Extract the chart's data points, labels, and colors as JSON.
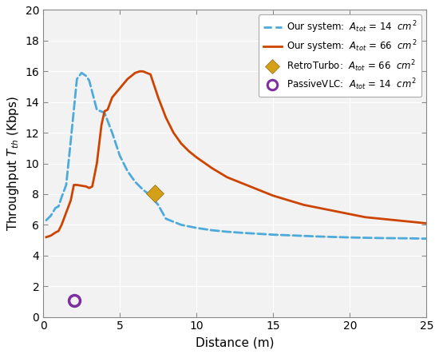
{
  "title": "",
  "xlabel": "Distance (m)",
  "ylabel": "Throughput $T_{th}$ (Kbps)",
  "xlim": [
    0,
    25
  ],
  "ylim": [
    0,
    20
  ],
  "xticks": [
    0,
    5,
    10,
    15,
    20,
    25
  ],
  "yticks": [
    0,
    2,
    4,
    6,
    8,
    10,
    12,
    14,
    16,
    18,
    20
  ],
  "bg_color": "#ffffff",
  "plot_bg_color": "#f2f2f2",
  "grid_color": "#ffffff",
  "dashed_color": "#4daadb",
  "solid_color": "#cc4400",
  "marker_diamond_color": "#d4a017",
  "marker_circle_color": "#7b2fa0",
  "legend": [
    "Our system:  $A_{tot}$ = 14  $cm^2$",
    "Our system:  $A_{tot}$ = 66  $cm^2$",
    "RetroTurbo:  $A_{tot}$ = 66  $cm^2$",
    "PassiveVLC:  $A_{tot}$ = 14  $cm^2$"
  ],
  "retro_turbo_point": [
    7.3,
    8.05
  ],
  "passive_vlc_point": [
    2.0,
    1.05
  ],
  "dashed_x": [
    0.2,
    0.5,
    0.8,
    1.0,
    1.2,
    1.5,
    1.8,
    2.0,
    2.2,
    2.5,
    2.8,
    3.0,
    3.5,
    4.0,
    4.5,
    5.0,
    5.5,
    6.0,
    6.5,
    7.0,
    7.5,
    8.0,
    8.5,
    9.0,
    9.5,
    10.0,
    11.0,
    12.0,
    13.0,
    14.0,
    15.0,
    16.0,
    17.0,
    18.0,
    19.0,
    20.0,
    21.0,
    22.0,
    23.0,
    24.0,
    25.0
  ],
  "dashed_y": [
    6.3,
    6.6,
    7.1,
    7.2,
    7.8,
    8.6,
    11.5,
    13.5,
    15.5,
    15.9,
    15.7,
    15.4,
    13.5,
    13.3,
    12.0,
    10.5,
    9.5,
    8.8,
    8.3,
    7.9,
    7.3,
    6.4,
    6.2,
    6.0,
    5.9,
    5.8,
    5.65,
    5.55,
    5.48,
    5.42,
    5.36,
    5.32,
    5.28,
    5.24,
    5.21,
    5.18,
    5.16,
    5.14,
    5.13,
    5.12,
    5.1
  ],
  "solid_x": [
    0.2,
    0.5,
    0.8,
    1.0,
    1.2,
    1.5,
    1.8,
    2.0,
    2.2,
    2.5,
    2.8,
    3.0,
    3.2,
    3.5,
    3.8,
    4.0,
    4.2,
    4.5,
    5.0,
    5.5,
    6.0,
    6.3,
    6.5,
    7.0,
    7.5,
    8.0,
    8.5,
    9.0,
    9.5,
    10.0,
    11.0,
    12.0,
    13.0,
    14.0,
    15.0,
    16.0,
    17.0,
    18.0,
    19.0,
    20.0,
    21.0,
    22.0,
    23.0,
    24.0,
    25.0
  ],
  "solid_y": [
    5.2,
    5.3,
    5.5,
    5.6,
    6.0,
    6.8,
    7.6,
    8.6,
    8.6,
    8.55,
    8.5,
    8.4,
    8.5,
    10.0,
    12.5,
    13.4,
    13.5,
    14.3,
    14.9,
    15.5,
    15.9,
    16.0,
    16.0,
    15.8,
    14.3,
    13.0,
    12.0,
    11.3,
    10.8,
    10.4,
    9.7,
    9.1,
    8.7,
    8.3,
    7.9,
    7.6,
    7.3,
    7.1,
    6.9,
    6.7,
    6.5,
    6.4,
    6.3,
    6.2,
    6.1
  ]
}
